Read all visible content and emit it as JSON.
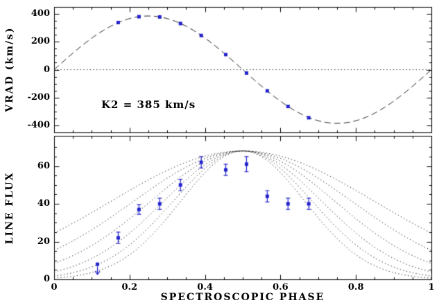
{
  "colors": {
    "background": "#ffffff",
    "axis": "#000000",
    "model": "#1a1a1a",
    "marker": "#2222cc"
  },
  "chart_data": {
    "type": "line",
    "title": "",
    "xlabel": "SPECTROSCOPIC PHASE",
    "xlim": [
      0,
      1
    ],
    "x_ticks": {
      "major": [
        0,
        0.2,
        0.4,
        0.6,
        0.8,
        1
      ],
      "labels": [
        "0",
        "0.2",
        "0.4",
        "0.6",
        "0.8",
        "1"
      ],
      "minor_step": 0.05
    },
    "panels": [
      {
        "name": "radial-velocity",
        "ylabel": "VRAD (km/s)",
        "ylim": [
          -450,
          450
        ],
        "y_ticks": {
          "major": [
            -400,
            -200,
            0,
            200,
            400
          ],
          "labels": [
            "-400",
            "-200",
            "0",
            "200",
            "400"
          ],
          "minor_step": 50
        },
        "annotation": {
          "text": "K2 = 385 km/s"
        },
        "zero_line": {
          "style": "dotted",
          "y": 0
        },
        "model_curve": {
          "shape": "sinusoid",
          "semi_amplitude_kms": 385,
          "phase_of_zero_crossing": 0,
          "line_style": "dashed"
        },
        "data_points": {
          "marker": "filled-square",
          "color": "#2222cc",
          "phases": [
            0.17,
            0.225,
            0.28,
            0.335,
            0.39,
            0.455,
            0.51,
            0.565,
            0.62,
            0.675
          ],
          "values": [
            338,
            380,
            378,
            331,
            245,
            108,
            -24,
            -152,
            -264,
            -345
          ]
        }
      },
      {
        "name": "line-flux",
        "ylabel": "LINE FLUX",
        "ylim": [
          0,
          76
        ],
        "y_ticks": {
          "major": [
            0,
            20,
            40,
            60
          ],
          "labels": [
            "0",
            "20",
            "40",
            "60"
          ],
          "minor_step": 5
        },
        "model_curves": {
          "shape": "gaussian",
          "line_style": "dotted",
          "peak": 68,
          "center_phase": 0.5,
          "sigmas": [
            0.35,
            0.29,
            0.245,
            0.21,
            0.185,
            0.165
          ]
        },
        "data_points": {
          "marker": "filled-square",
          "color": "#2222cc",
          "phases": [
            0.115,
            0.17,
            0.225,
            0.28,
            0.335,
            0.39,
            0.455,
            0.51,
            0.565,
            0.62,
            0.675
          ],
          "values": [
            8,
            22,
            37,
            40,
            50,
            62,
            58,
            61,
            44,
            40,
            40
          ],
          "errors": [
            0,
            3,
            2.5,
            3,
            3,
            3,
            3,
            4,
            3,
            3,
            3
          ],
          "upper_limits": [
            true,
            false,
            false,
            false,
            false,
            false,
            false,
            false,
            false,
            false,
            false
          ]
        }
      }
    ],
    "layout_hints": {
      "grid": false,
      "legend": "none",
      "panels_stacked": true,
      "shared_x_axis": true
    }
  }
}
